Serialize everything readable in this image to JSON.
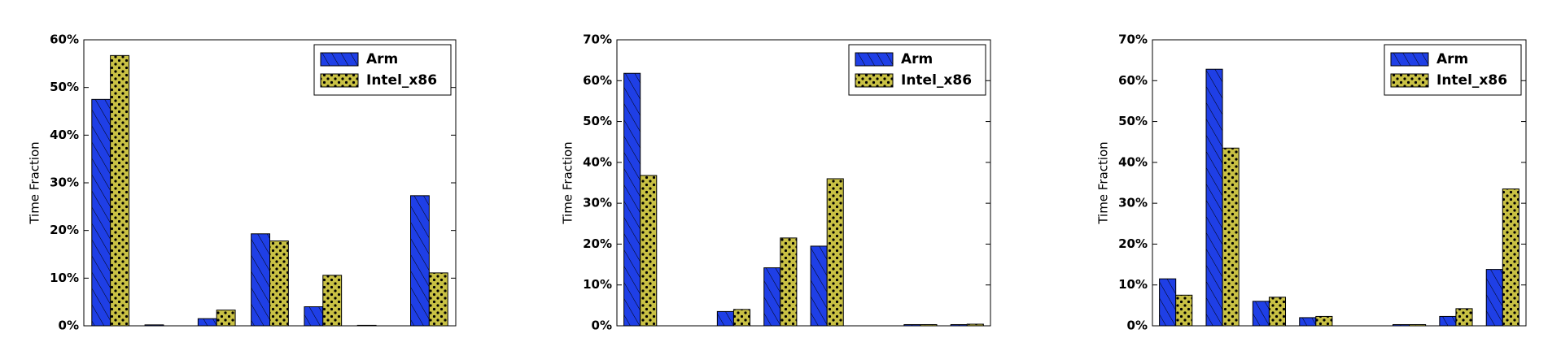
{
  "chart_data": [
    {
      "type": "bar",
      "ylabel": "Time Fraction",
      "categories": [
        null,
        null,
        null,
        null,
        null,
        null,
        null
      ],
      "series": [
        {
          "name": "Arm",
          "color": "#1f3fe6",
          "values": [
            47.5,
            0.2,
            1.5,
            19.3,
            4.0,
            0.1,
            27.3
          ]
        },
        {
          "name": "Intel_x86",
          "color": "#c9c144",
          "values": [
            56.7,
            0,
            3.3,
            17.8,
            10.6,
            0,
            11.1
          ]
        }
      ],
      "ylim": [
        0,
        60
      ],
      "yticks": [
        {
          "value": 0,
          "label": "0%"
        },
        {
          "value": 10,
          "label": "10%"
        },
        {
          "value": 20,
          "label": "20%"
        },
        {
          "value": 30,
          "label": "30%"
        },
        {
          "value": 40,
          "label": "40%"
        },
        {
          "value": 50,
          "label": "50%"
        },
        {
          "value": 60,
          "label": "60%"
        }
      ],
      "legend": "upper right"
    },
    {
      "type": "bar",
      "ylabel": "Time Fraction",
      "categories": [
        null,
        null,
        null,
        null,
        null,
        null,
        null,
        null
      ],
      "series": [
        {
          "name": "Arm",
          "color": "#1f3fe6",
          "values": [
            61.8,
            0,
            3.5,
            14.2,
            19.5,
            0,
            0.3,
            0.3
          ]
        },
        {
          "name": "Intel_x86",
          "color": "#c9c144",
          "values": [
            36.8,
            0,
            4.0,
            21.5,
            36.0,
            0,
            0.3,
            0.4
          ]
        }
      ],
      "ylim": [
        0,
        70
      ],
      "yticks": [
        {
          "value": 0,
          "label": "0%"
        },
        {
          "value": 10,
          "label": "10%"
        },
        {
          "value": 20,
          "label": "20%"
        },
        {
          "value": 30,
          "label": "30%"
        },
        {
          "value": 40,
          "label": "40%"
        },
        {
          "value": 50,
          "label": "50%"
        },
        {
          "value": 60,
          "label": "60%"
        },
        {
          "value": 70,
          "label": "70%"
        }
      ],
      "legend": "upper right"
    },
    {
      "type": "bar",
      "ylabel": "Time Fraction",
      "categories": [
        null,
        null,
        null,
        null,
        null,
        null,
        null,
        null
      ],
      "series": [
        {
          "name": "Arm",
          "color": "#1f3fe6",
          "values": [
            11.5,
            62.8,
            6.0,
            2.0,
            0,
            0.3,
            2.3,
            13.8
          ]
        },
        {
          "name": "Intel_x86",
          "color": "#c9c144",
          "values": [
            7.5,
            43.5,
            7.0,
            2.3,
            0,
            0.3,
            4.2,
            33.5
          ]
        }
      ],
      "ylim": [
        0,
        70
      ],
      "yticks": [
        {
          "value": 0,
          "label": "0%"
        },
        {
          "value": 10,
          "label": "10%"
        },
        {
          "value": 20,
          "label": "20%"
        },
        {
          "value": 30,
          "label": "30%"
        },
        {
          "value": 40,
          "label": "40%"
        },
        {
          "value": 50,
          "label": "50%"
        },
        {
          "value": 60,
          "label": "60%"
        },
        {
          "value": 70,
          "label": "70%"
        }
      ],
      "legend": "upper right"
    }
  ]
}
